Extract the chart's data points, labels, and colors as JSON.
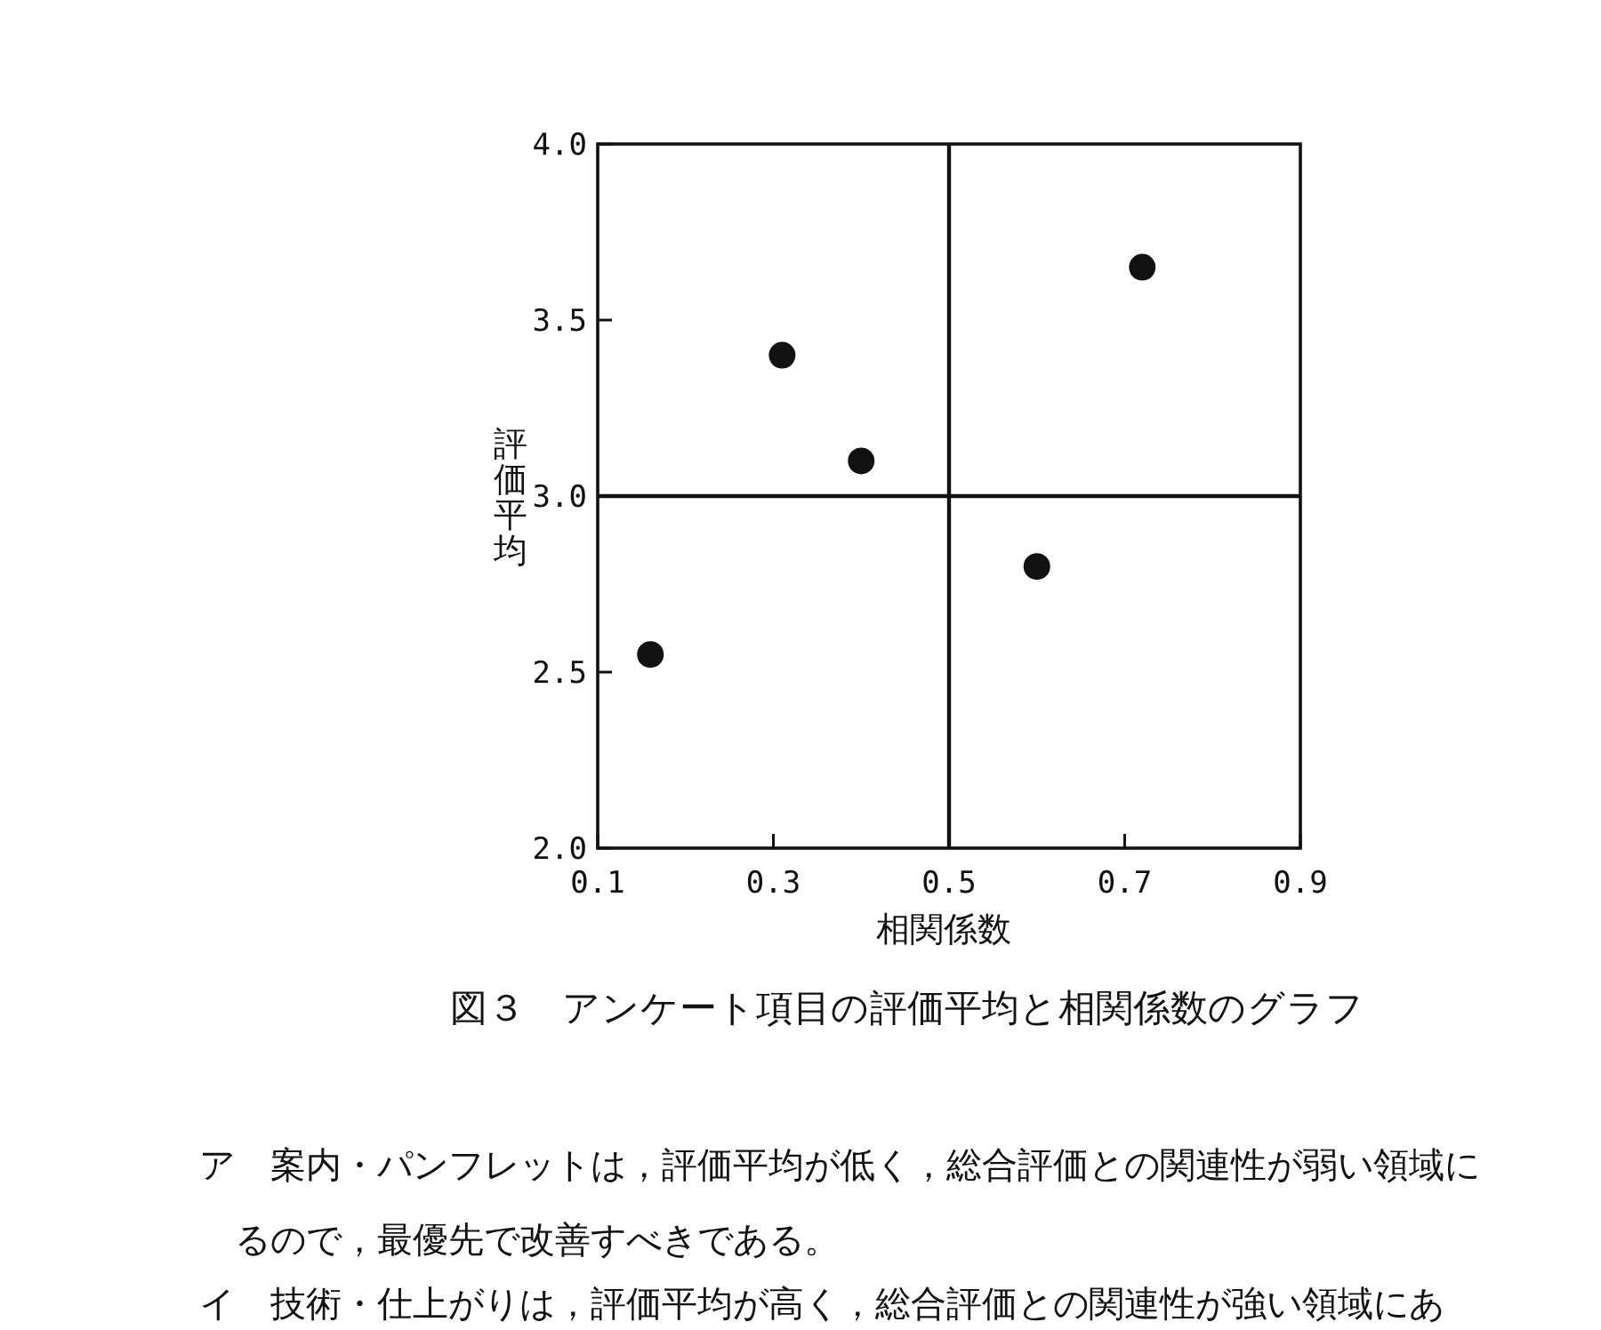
{
  "chart_data": {
    "type": "scatter",
    "title": "図３　アンケート項目の評価平均と相関係数のグラフ",
    "xlabel": "相関係数",
    "ylabel": "評価平均",
    "x": [
      0.16,
      0.31,
      0.4,
      0.6,
      0.72
    ],
    "values": [
      2.55,
      3.4,
      3.1,
      2.8,
      3.65
    ],
    "color": "#111111",
    "marker": "circle",
    "xlim": [
      0.1,
      0.9
    ],
    "ylim": [
      2.0,
      4.0
    ],
    "xticks": [
      0.1,
      0.3,
      0.5,
      0.7,
      0.9
    ],
    "yticks": [
      {
        "value": 2.0,
        "label": "2.0"
      },
      2.5,
      {
        "value": 3.0,
        "label": "3.0"
      },
      3.5,
      {
        "value": 4.0,
        "label": "4.0"
      }
    ],
    "ref_lines": [
      {
        "axis": "x",
        "value": 0.5,
        "color": "#111111"
      },
      {
        "axis": "y",
        "value": 3.0,
        "color": "#111111"
      }
    ],
    "grid": false,
    "annotations": [
      "ア　案内・パンフレットは，評価平均が低く，総合評価との関連性が弱い領域に",
      "るので，最優先で改善すべきである。",
      "イ　技術・仕上がりは，評価平均が高く，総合評価との関連性が強い領域にあ"
    ]
  }
}
